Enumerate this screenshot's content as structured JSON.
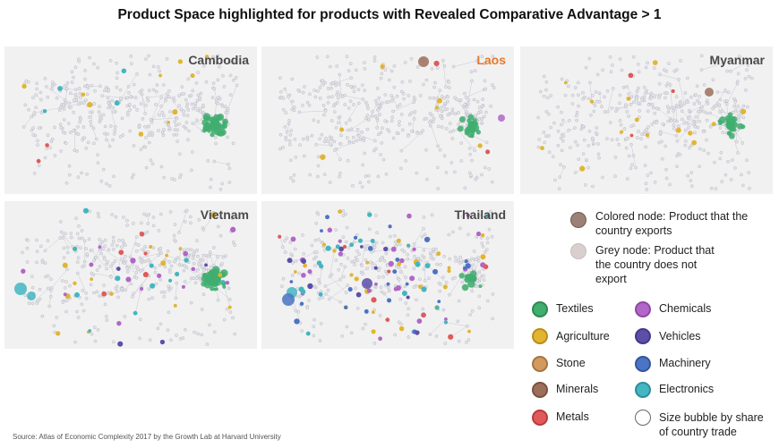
{
  "title": "Product Space highlighted for products with Revealed Comparative Advantage > 1",
  "panels": [
    {
      "name": "Cambodia",
      "title_color": "#4a4a4a"
    },
    {
      "name": "Laos",
      "title_color": "#e8782a"
    },
    {
      "name": "Myanmar",
      "title_color": "#4a4a4a"
    },
    {
      "name": "Vietnam",
      "title_color": "#4a4a4a"
    },
    {
      "name": "Thailand",
      "title_color": "#4a4a4a"
    }
  ],
  "legend": {
    "colored_node": "Colored node: Product that the country exports",
    "grey_node": "Grey node: Product that the country does not export",
    "colored_node_color": "#9c8176",
    "grey_node_color": "#d9cfcf",
    "size_bubble": "Size bubble by share of country trade"
  },
  "categories": [
    {
      "label": "Textiles",
      "color": "#3fae6e",
      "icon": "textiles-icon"
    },
    {
      "label": "Chemicals",
      "color": "#b266c8",
      "icon": "chemicals-icon"
    },
    {
      "label": "Agriculture",
      "color": "#e2b531",
      "icon": "agriculture-icon"
    },
    {
      "label": "Vehicles",
      "color": "#5b4fa8",
      "icon": "vehicles-icon"
    },
    {
      "label": "Stone",
      "color": "#d39a5e",
      "icon": "stone-icon"
    },
    {
      "label": "Machinery",
      "color": "#4a74c4",
      "icon": "machinery-icon"
    },
    {
      "label": "Minerals",
      "color": "#9c6f5c",
      "icon": "minerals-icon"
    },
    {
      "label": "Electronics",
      "color": "#43b6c1",
      "icon": "electronics-icon"
    },
    {
      "label": "Metals",
      "color": "#e05a5a",
      "icon": "metals-icon"
    }
  ],
  "source": "Source: Atlas of Economic Complexity 2017 by the Growth Lab at Harvard University"
}
